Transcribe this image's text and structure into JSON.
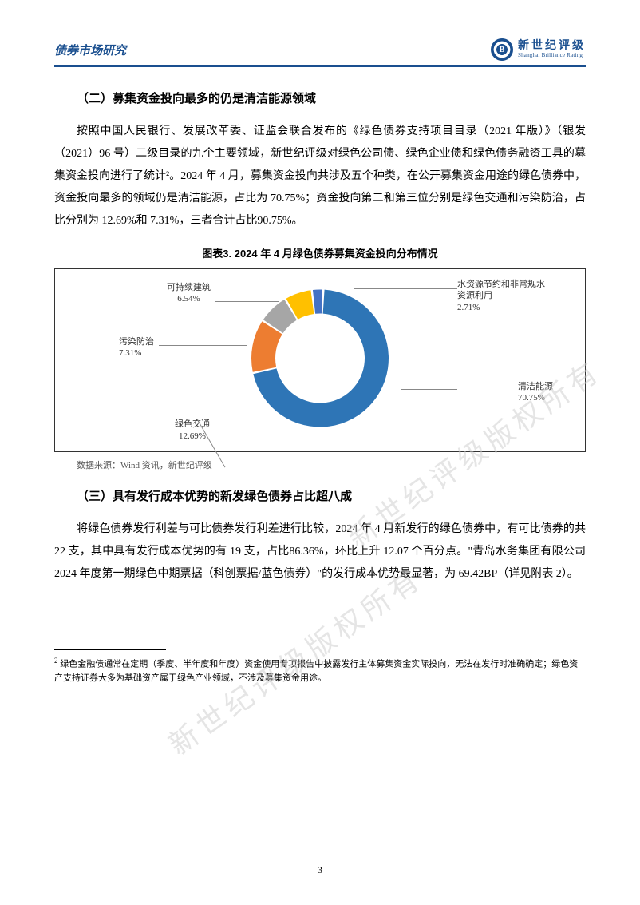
{
  "header": {
    "left": "债券市场研究",
    "brand_cn": "新世纪评级",
    "brand_en": "Shanghai Brilliance Rating",
    "logo_letter": "B"
  },
  "section2": {
    "heading": "（二）募集资金投向最多的仍是清洁能源领域",
    "para": "按照中国人民银行、发展改革委、证监会联合发布的《绿色债券支持项目目录（2021 年版）》（银发（2021）96 号）二级目录的九个主要领域，新世纪评级对绿色公司债、绿色企业债和绿色债务融资工具的募集资金投向进行了统计²。2024 年 4 月，募集资金投向共涉及五个种类，在公开募集资金用途的绿色债券中，资金投向最多的领域仍是清洁能源，占比为 70.75%；资金投向第二和第三位分别是绿色交通和污染防治，占比分别为 12.69%和 7.31%，三者合计占比90.75%。"
  },
  "chart": {
    "title": "图表3.   2024 年 4 月绿色债券募集资金投向分布情况",
    "type": "donut",
    "source": "数据来源：Wind 资讯，新世纪评级",
    "background_color": "#ffffff",
    "border_color": "#333333",
    "inner_radius": 56,
    "outer_radius": 86,
    "slices": [
      {
        "label": "清洁能源",
        "value_text": "70.75%",
        "value": 70.75,
        "color": "#2e75b6"
      },
      {
        "label": "绿色交通",
        "value_text": "12.69%",
        "value": 12.69,
        "color": "#ed7d31"
      },
      {
        "label": "污染防治",
        "value_text": "7.31%",
        "value": 7.31,
        "color": "#a6a6a6"
      },
      {
        "label": "可持续建筑",
        "value_text": "6.54%",
        "value": 6.54,
        "color": "#ffc000"
      },
      {
        "label": "水资源节约和非常规水资源利用",
        "value_text": "2.71%",
        "value": 2.71,
        "color": "#4472c4"
      }
    ],
    "label_fontsize": 11,
    "leader_color": "#888888"
  },
  "section3": {
    "heading": "（三）具有发行成本优势的新发绿色债券占比超八成",
    "para": "将绿色债券发行利差与可比债券发行利差进行比较，2024 年 4 月新发行的绿色债券中，有可比债券的共 22 支，其中具有发行成本优势的有 19 支，占比86.36%，环比上升 12.07 个百分点。\"青岛水务集团有限公司 2024 年度第一期绿色中期票据（科创票据/蓝色债券）\"的发行成本优势最显著，为 69.42BP（详见附表 2）。"
  },
  "footnote": {
    "marker": "2",
    "text": " 绿色金融债通常在定期（季度、半年度和年度）资金使用专项报告中披露发行主体募集资金实际投向，无法在发行时准确确定；绿色资产支持证券大多为基础资产属于绿色产业领域，不涉及募集资金用途。"
  },
  "page_number": "3",
  "watermark": "新世纪评级版权所有"
}
